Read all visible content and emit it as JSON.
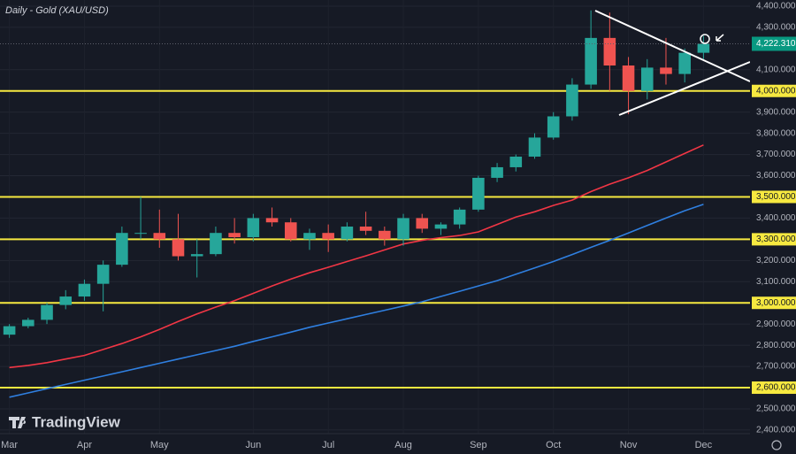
{
  "chart_data": {
    "type": "candlestick",
    "title": "Daily - Gold (XAU/USD)",
    "watermark": "TradingView",
    "categories": [
      "Mar",
      null,
      null,
      null,
      "Apr",
      null,
      null,
      null,
      "May",
      null,
      null,
      null,
      null,
      "Jun",
      null,
      null,
      null,
      "Jul",
      null,
      null,
      null,
      "Aug",
      null,
      null,
      null,
      "Sep",
      null,
      null,
      null,
      "Oct",
      null,
      null,
      null,
      "Nov",
      null,
      null,
      null,
      "Dec"
    ],
    "open": [
      2850,
      2890,
      2920,
      2990,
      3030,
      3090,
      3180,
      3330,
      3330,
      3300,
      3220,
      3230,
      3330,
      3310,
      3400,
      3380,
      3300,
      3330,
      3300,
      3360,
      3340,
      3300,
      3400,
      3350,
      3370,
      3440,
      3590,
      3640,
      3690,
      3780,
      3880,
      4030,
      4250,
      4120,
      4000,
      4110,
      4080,
      4180
    ],
    "high": [
      2900,
      2930,
      3000,
      3060,
      3110,
      3200,
      3360,
      3500,
      3440,
      3420,
      3300,
      3360,
      3400,
      3420,
      3450,
      3400,
      3350,
      3370,
      3380,
      3430,
      3360,
      3420,
      3420,
      3380,
      3450,
      3600,
      3660,
      3700,
      3800,
      3900,
      4060,
      4380,
      4370,
      4160,
      4150,
      4250,
      4200,
      4260
    ],
    "low": [
      2835,
      2880,
      2900,
      2970,
      3010,
      2960,
      3170,
      3300,
      3260,
      3200,
      3120,
      3220,
      3280,
      3290,
      3360,
      3290,
      3250,
      3240,
      3290,
      3320,
      3270,
      3270,
      3330,
      3320,
      3350,
      3430,
      3570,
      3620,
      3680,
      3770,
      3860,
      4010,
      4000,
      3890,
      3960,
      4030,
      4040,
      4150
    ],
    "close": [
      2890,
      2920,
      2990,
      3030,
      3090,
      3180,
      3330,
      3330,
      3300,
      3220,
      3230,
      3330,
      3310,
      3400,
      3380,
      3300,
      3330,
      3300,
      3360,
      3340,
      3300,
      3400,
      3350,
      3370,
      3440,
      3590,
      3640,
      3690,
      3780,
      3880,
      4030,
      4250,
      4120,
      4000,
      4110,
      4080,
      4180,
      4222.31
    ],
    "up_color": "#26a69a",
    "down_color": "#ef5350",
    "lines": [
      {
        "color": "#f23645",
        "values": [
          2695,
          2705,
          2718,
          2735,
          2752,
          2780,
          2808,
          2840,
          2875,
          2912,
          2948,
          2980,
          3010,
          3045,
          3080,
          3112,
          3142,
          3168,
          3195,
          3222,
          3250,
          3278,
          3295,
          3308,
          3318,
          3335,
          3370,
          3405,
          3430,
          3460,
          3485,
          3525,
          3560,
          3590,
          3625,
          3665,
          3705,
          3745
        ]
      },
      {
        "color": "#2f7fe0",
        "values": [
          2555,
          2575,
          2595,
          2615,
          2635,
          2655,
          2675,
          2695,
          2715,
          2735,
          2755,
          2775,
          2795,
          2818,
          2840,
          2862,
          2885,
          2905,
          2925,
          2945,
          2965,
          2985,
          3005,
          3030,
          3055,
          3080,
          3105,
          3135,
          3165,
          3195,
          3228,
          3262,
          3295,
          3330,
          3365,
          3400,
          3435,
          3465
        ]
      }
    ],
    "levels": [
      4000,
      3500,
      3300,
      3000,
      2600
    ],
    "level_color": "#f7e940",
    "last_price": {
      "value": 4222.31,
      "label": "4,222.310"
    },
    "ylim": [
      2383,
      4429
    ],
    "yticks": [
      {
        "value": 4400,
        "label": "4,400.000"
      },
      {
        "value": 4300,
        "label": "4,300.000"
      },
      {
        "value": 4100,
        "label": "4,100.000"
      },
      {
        "value": 4000,
        "label": "4,000.000"
      },
      {
        "value": 3900,
        "label": "3,900.000"
      },
      {
        "value": 3800,
        "label": "3,800.000"
      },
      {
        "value": 3700,
        "label": "3,700.000"
      },
      {
        "value": 3600,
        "label": "3,600.000"
      },
      {
        "value": 3500,
        "label": "3,500.000"
      },
      {
        "value": 3400,
        "label": "3,400.000"
      },
      {
        "value": 3300,
        "label": "3,300.000"
      },
      {
        "value": 3200,
        "label": "3,200.000"
      },
      {
        "value": 3100,
        "label": "3,100.000"
      },
      {
        "value": 3000,
        "label": "3,000.000"
      },
      {
        "value": 2900,
        "label": "2,900.000"
      },
      {
        "value": 2800,
        "label": "2,800.000"
      },
      {
        "value": 2700,
        "label": "2,700.000"
      },
      {
        "value": 2600,
        "label": "2,600.000"
      },
      {
        "value": 2500,
        "label": "2,500.000"
      },
      {
        "value": 2400,
        "label": "2,400.000"
      }
    ],
    "grid": true
  }
}
